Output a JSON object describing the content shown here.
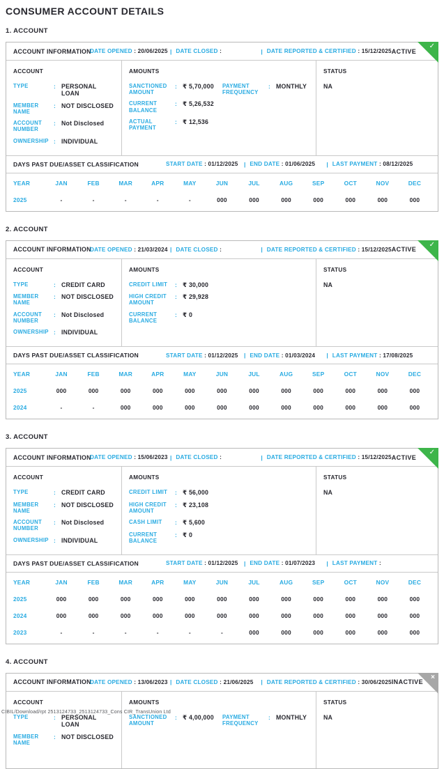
{
  "theme": {
    "cyan": "#29ABE2",
    "dark": "#27272E",
    "active_green": "#3DB54A",
    "inactive_gray": "#A7A7A7"
  },
  "page": {
    "title": "CONSUMER ACCOUNT DETAILS",
    "footer": "CIBIL/Download/rpt 2513124733_2513124733_Cons CIR_TransUnion Ltd"
  },
  "labels": {
    "account_information": "ACCOUNT INFORMATION",
    "date_opened": "DATE OPENED",
    "date_closed": "DATE CLOSED",
    "date_reported": "DATE REPORTED & CERTIFIED",
    "account": "ACCOUNT",
    "amounts": "AMOUNTS",
    "status": "STATUS",
    "dpd": "DAYS PAST DUE/ASSET CLASSIFICATION",
    "start_date": "START DATE",
    "end_date": "END DATE",
    "last_payment": "LAST PAYMENT",
    "year": "YEAR",
    "months": [
      "JAN",
      "FEB",
      "MAR",
      "APR",
      "MAY",
      "JUN",
      "JUL",
      "AUG",
      "SEP",
      "OCT",
      "NOV",
      "DEC"
    ]
  },
  "accounts": [
    {
      "heading": "1. ACCOUNT",
      "badge": {
        "label": "ACTIVE",
        "state": "active",
        "icon": "check"
      },
      "dates": {
        "opened": "20/06/2025",
        "closed": "",
        "reported": "15/12/2025"
      },
      "account_fields": [
        {
          "label": "TYPE",
          "value": "PERSONAL LOAN"
        },
        {
          "label": "MEMBER NAME",
          "value": "NOT DISCLOSED"
        },
        {
          "label": "ACCOUNT NUMBER",
          "value": "Not Disclosed"
        },
        {
          "label": "OWNERSHIP",
          "value": "INDIVIDUAL"
        }
      ],
      "amounts_left": [
        {
          "label": "SANCTIONED AMOUNT",
          "value": "₹ 5,70,000"
        },
        {
          "label": "CURRENT BALANCE",
          "value": "₹ 5,26,532"
        },
        {
          "label": "ACTUAL PAYMENT",
          "value": "₹ 12,536"
        }
      ],
      "amounts_right": [
        {
          "label": "PAYMENT FREQUENCY",
          "value": "MONTHLY"
        }
      ],
      "status_value": "NA",
      "dpd": {
        "start_date": "01/12/2025",
        "end_date": "01/06/2025",
        "last_payment": "08/12/2025",
        "rows": [
          {
            "year": "2025",
            "values": [
              "-",
              "-",
              "-",
              "-",
              "-",
              "000",
              "000",
              "000",
              "000",
              "000",
              "000",
              "000"
            ]
          }
        ]
      }
    },
    {
      "heading": "2. ACCOUNT",
      "badge": {
        "label": "ACTIVE",
        "state": "active",
        "icon": "check"
      },
      "dates": {
        "opened": "21/03/2024",
        "closed": "",
        "reported": "15/12/2025"
      },
      "account_fields": [
        {
          "label": "TYPE",
          "value": "CREDIT CARD"
        },
        {
          "label": "MEMBER NAME",
          "value": "NOT DISCLOSED"
        },
        {
          "label": "ACCOUNT NUMBER",
          "value": "Not Disclosed"
        },
        {
          "label": "OWNERSHIP",
          "value": "INDIVIDUAL"
        }
      ],
      "amounts_left": [
        {
          "label": "CREDIT LIMIT",
          "value": "₹ 30,000"
        },
        {
          "label": "HIGH CREDIT AMOUNT",
          "value": "₹ 29,928"
        },
        {
          "label": "CURRENT BALANCE",
          "value": "₹ 0"
        }
      ],
      "amounts_right": [],
      "status_value": "NA",
      "dpd": {
        "start_date": "01/12/2025",
        "end_date": "01/03/2024",
        "last_payment": "17/08/2025",
        "rows": [
          {
            "year": "2025",
            "values": [
              "000",
              "000",
              "000",
              "000",
              "000",
              "000",
              "000",
              "000",
              "000",
              "000",
              "000",
              "000"
            ]
          },
          {
            "year": "2024",
            "values": [
              "-",
              "-",
              "000",
              "000",
              "000",
              "000",
              "000",
              "000",
              "000",
              "000",
              "000",
              "000"
            ]
          }
        ]
      }
    },
    {
      "heading": "3. ACCOUNT",
      "badge": {
        "label": "ACTIVE",
        "state": "active",
        "icon": "check"
      },
      "dates": {
        "opened": "15/06/2023",
        "closed": "",
        "reported": "15/12/2025"
      },
      "account_fields": [
        {
          "label": "TYPE",
          "value": "CREDIT CARD"
        },
        {
          "label": "MEMBER NAME",
          "value": "NOT DISCLOSED"
        },
        {
          "label": "ACCOUNT NUMBER",
          "value": "Not Disclosed"
        },
        {
          "label": "OWNERSHIP",
          "value": "INDIVIDUAL"
        }
      ],
      "amounts_left": [
        {
          "label": "CREDIT LIMIT",
          "value": "₹ 56,000"
        },
        {
          "label": "HIGH CREDIT AMOUNT",
          "value": "₹ 23,108"
        },
        {
          "label": "CASH LIMIT",
          "value": "₹ 5,600"
        },
        {
          "label": "CURRENT BALANCE",
          "value": "₹ 0"
        }
      ],
      "amounts_right": [],
      "status_value": "NA",
      "dpd": {
        "start_date": "01/12/2025",
        "end_date": "01/07/2023",
        "last_payment": "",
        "rows": [
          {
            "year": "2025",
            "values": [
              "000",
              "000",
              "000",
              "000",
              "000",
              "000",
              "000",
              "000",
              "000",
              "000",
              "000",
              "000"
            ]
          },
          {
            "year": "2024",
            "values": [
              "000",
              "000",
              "000",
              "000",
              "000",
              "000",
              "000",
              "000",
              "000",
              "000",
              "000",
              "000"
            ]
          },
          {
            "year": "2023",
            "values": [
              "-",
              "-",
              "-",
              "-",
              "-",
              "-",
              "000",
              "000",
              "000",
              "000",
              "000",
              "000"
            ]
          }
        ]
      }
    },
    {
      "heading": "4. ACCOUNT",
      "badge": {
        "label": "INACTIVE",
        "state": "inactive",
        "icon": "cross"
      },
      "dates": {
        "opened": "13/06/2023",
        "closed": "21/06/2025",
        "reported": "30/06/2025"
      },
      "account_fields": [
        {
          "label": "TYPE",
          "value": "PERSONAL LOAN"
        },
        {
          "label": "MEMBER NAME",
          "value": "NOT DISCLOSED"
        }
      ],
      "amounts_left": [
        {
          "label": "SANCTIONED AMOUNT",
          "value": "₹ 4,00,000"
        }
      ],
      "amounts_right": [
        {
          "label": "PAYMENT FREQUENCY",
          "value": "MONTHLY"
        }
      ],
      "status_value": "NA",
      "dpd": null
    }
  ]
}
